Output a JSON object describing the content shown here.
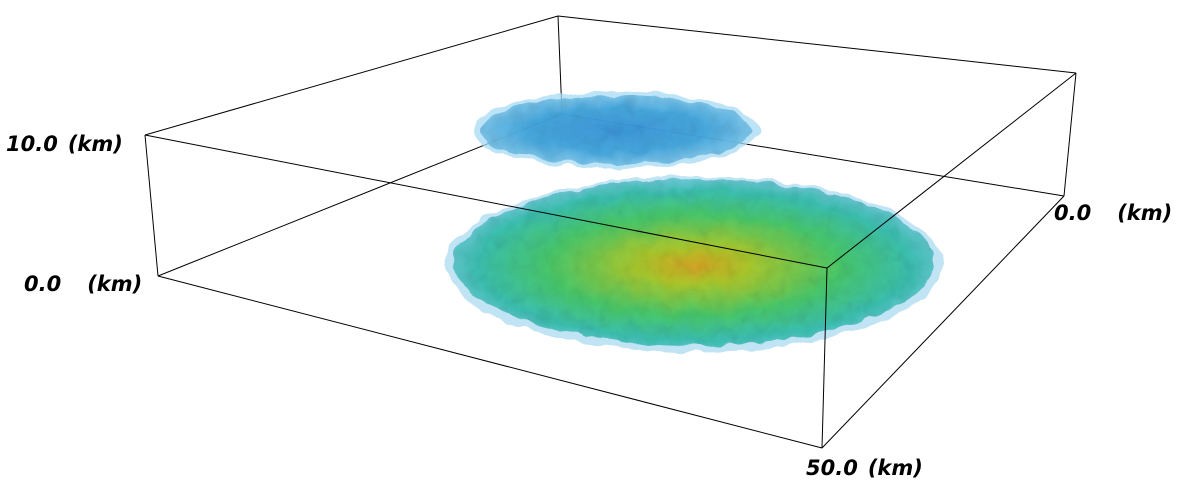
{
  "axes": {
    "z_top": {
      "value": "10.0",
      "unit": "(km)"
    },
    "z_bottom": {
      "value": "0.0",
      "unit": "(km)"
    },
    "y_origin": {
      "value": "0.0",
      "unit": "(km)"
    },
    "x_end": {
      "value": "50.0",
      "unit": "(km)"
    }
  },
  "colors": {
    "box_edges": "#000000",
    "upper_body": "#3aa3dd",
    "lower_body_edge": "#6cc0e3",
    "lower_body_mid": "#3ec46a",
    "lower_body_core": "#d8b21a"
  }
}
